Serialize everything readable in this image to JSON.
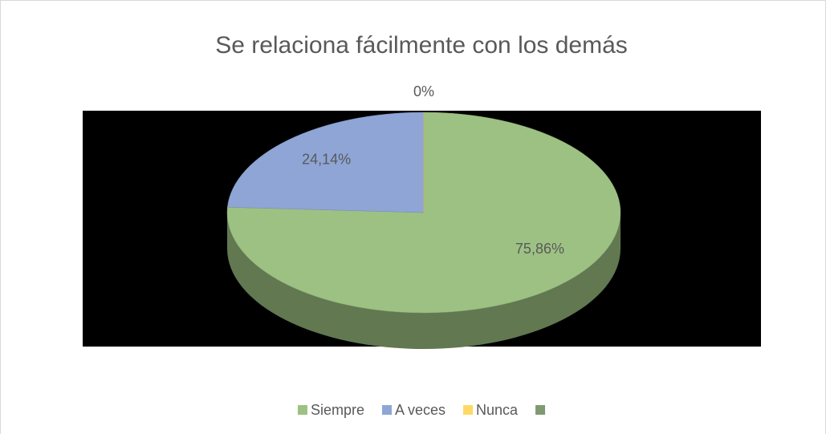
{
  "chart_data": {
    "type": "pie3d",
    "title": "Se relaciona fácilmente con los demás",
    "categories": [
      "Siempre",
      "A veces",
      "Nunca",
      null
    ],
    "values": [
      75.86,
      24.14,
      0,
      null
    ],
    "value_labels": [
      "75,86%",
      "24,14%",
      "0%",
      null
    ],
    "colors": [
      "#9dc183",
      "#8ea5d6",
      "#ffd966",
      "#7f9a70"
    ],
    "legend": "bottom"
  }
}
